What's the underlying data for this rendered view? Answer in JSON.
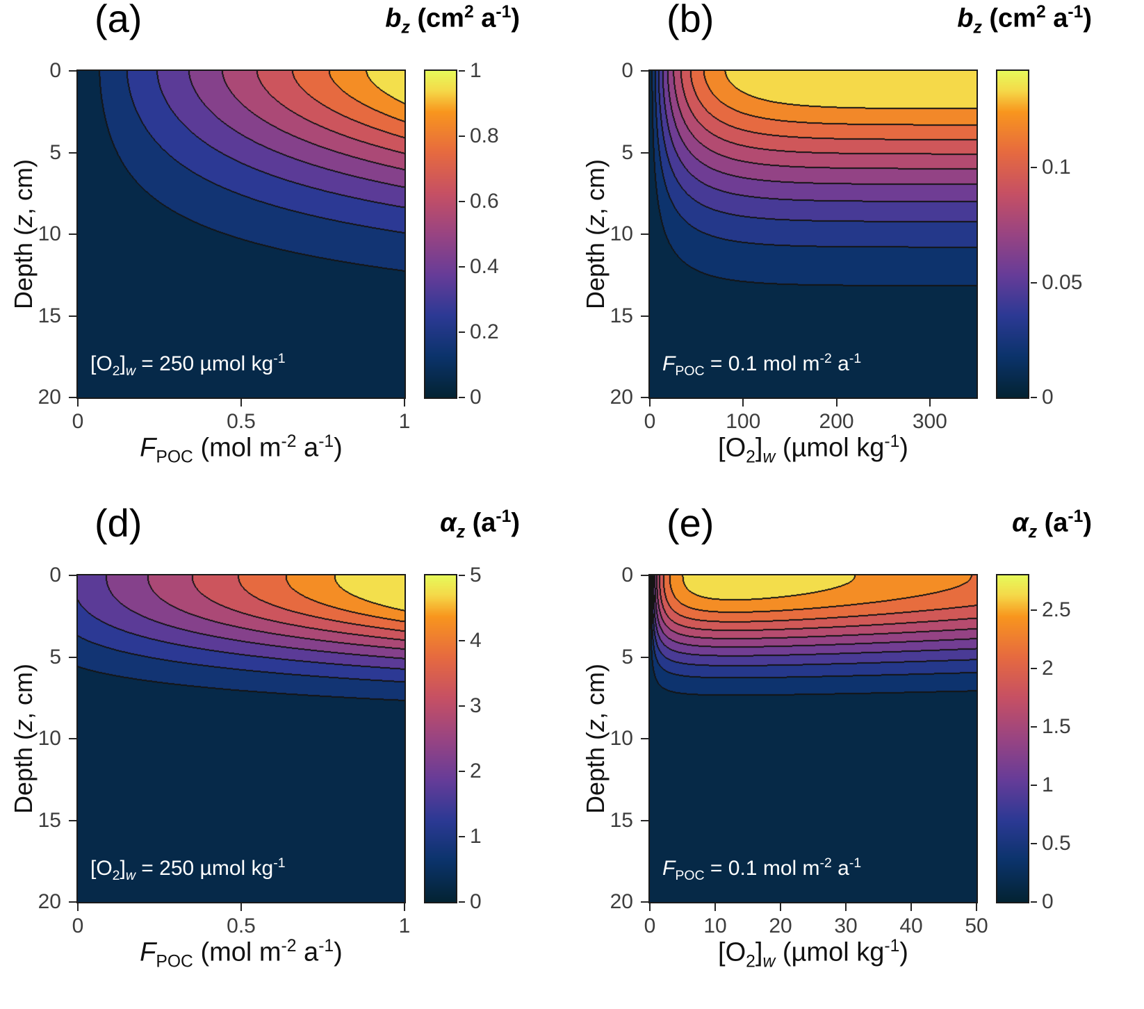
{
  "figure": {
    "background": "#ffffff",
    "tick_color": "#262626",
    "tick_label_color": "#3d3d3d",
    "contour_line_color": "#141414",
    "annotation_color": "#ffffff",
    "colormap_name": "thermal",
    "colormap_stops": [
      {
        "t": 0.0,
        "hex": "#032333"
      },
      {
        "t": 0.125,
        "hex": "#0b336b"
      },
      {
        "t": 0.25,
        "hex": "#2c3994"
      },
      {
        "t": 0.375,
        "hex": "#673c98"
      },
      {
        "t": 0.5,
        "hex": "#994482"
      },
      {
        "t": 0.625,
        "hex": "#c65064"
      },
      {
        "t": 0.75,
        "hex": "#e66a40"
      },
      {
        "t": 0.875,
        "hex": "#f8961e"
      },
      {
        "t": 0.94,
        "hex": "#f5d949"
      },
      {
        "t": 1.0,
        "hex": "#e7fa5a"
      }
    ]
  },
  "chart_data": [
    {
      "id": "a",
      "type": "heatmap",
      "subtype": "filled_contour",
      "panel_label": "(a)",
      "colorbar_title": [
        {
          "t": "b",
          "i": true,
          "b": true
        },
        {
          "t": "z",
          "i": true,
          "b": true,
          "sub": true
        },
        {
          "t": " (cm",
          "b": true
        },
        {
          "t": "2",
          "b": true,
          "sup": true
        },
        {
          "t": " a",
          "b": true
        },
        {
          "t": "-1",
          "b": true,
          "sup": true
        },
        {
          "t": ")",
          "b": true
        }
      ],
      "xlabel": [
        {
          "t": "F",
          "i": true
        },
        {
          "t": "POC",
          "sub": true
        },
        {
          "t": " (mol m"
        },
        {
          "t": "-2",
          "sup": true
        },
        {
          "t": " a"
        },
        {
          "t": "-1",
          "sup": true
        },
        {
          "t": ")"
        }
      ],
      "ylabel": [
        {
          "t": "Depth ("
        },
        {
          "t": "z",
          "i": true
        },
        {
          "t": ", cm)"
        }
      ],
      "annotation": [
        {
          "t": "[O"
        },
        {
          "t": "2",
          "sub": true
        },
        {
          "t": "]"
        },
        {
          "t": "w",
          "sub": true,
          "i": true
        },
        {
          "t": " = 250 µmol kg"
        },
        {
          "t": "-1",
          "sup": true
        }
      ],
      "x_range": [
        0,
        1
      ],
      "x_ticks": [
        {
          "v": 0,
          "label": "0"
        },
        {
          "v": 0.5,
          "label": "0.5"
        },
        {
          "v": 1,
          "label": "1"
        }
      ],
      "z_range": [
        0,
        20
      ],
      "z_ticks": [
        {
          "v": 0,
          "label": "0"
        },
        {
          "v": 5,
          "label": "5"
        },
        {
          "v": 10,
          "label": "10"
        },
        {
          "v": 15,
          "label": "15"
        },
        {
          "v": 20,
          "label": "20"
        }
      ],
      "v_range": [
        0,
        1
      ],
      "levels": [
        0.1,
        0.2,
        0.3,
        0.4,
        0.5,
        0.6,
        0.7,
        0.8,
        0.9
      ],
      "colorbar_ticks": [
        {
          "v": 0,
          "label": "0"
        },
        {
          "v": 0.2,
          "label": "0.2"
        },
        {
          "v": 0.4,
          "label": "0.4"
        },
        {
          "v": 0.6,
          "label": "0.6"
        },
        {
          "v": 0.8,
          "label": "0.8"
        },
        {
          "v": 1,
          "label": "1"
        }
      ],
      "model": {
        "a0": 0,
        "a1": 1,
        "p": 0.85,
        "L": 7.5,
        "q": 1.7
      }
    },
    {
      "id": "b",
      "type": "heatmap",
      "subtype": "filled_contour",
      "panel_label": "(b)",
      "colorbar_title": [
        {
          "t": "b",
          "i": true,
          "b": true
        },
        {
          "t": "z",
          "i": true,
          "b": true,
          "sub": true
        },
        {
          "t": " (cm",
          "b": true
        },
        {
          "t": "2",
          "b": true,
          "sup": true
        },
        {
          "t": " a",
          "b": true
        },
        {
          "t": "-1",
          "b": true,
          "sup": true
        },
        {
          "t": ")",
          "b": true
        }
      ],
      "xlabel": [
        {
          "t": "[O"
        },
        {
          "t": "2",
          "sub": true
        },
        {
          "t": "]"
        },
        {
          "t": "w",
          "sub": true,
          "i": true
        },
        {
          "t": " (µmol kg"
        },
        {
          "t": "-1",
          "sup": true
        },
        {
          "t": ")"
        }
      ],
      "ylabel": [
        {
          "t": "Depth ("
        },
        {
          "t": "z",
          "i": true
        },
        {
          "t": ", cm)"
        }
      ],
      "annotation": [
        {
          "t": "F",
          "i": true
        },
        {
          "t": "POC",
          "sub": true
        },
        {
          "t": " = 0.1 mol m"
        },
        {
          "t": "-2",
          "sup": true
        },
        {
          "t": " a"
        },
        {
          "t": "-1",
          "sup": true
        }
      ],
      "x_range": [
        0,
        350
      ],
      "x_ticks": [
        {
          "v": 0,
          "label": "0"
        },
        {
          "v": 100,
          "label": "100"
        },
        {
          "v": 200,
          "label": "200"
        },
        {
          "v": 300,
          "label": "300"
        }
      ],
      "z_range": [
        0,
        20
      ],
      "z_ticks": [
        {
          "v": 0,
          "label": "0"
        },
        {
          "v": 5,
          "label": "5"
        },
        {
          "v": 10,
          "label": "10"
        },
        {
          "v": 15,
          "label": "15"
        },
        {
          "v": 20,
          "label": "20"
        }
      ],
      "v_range": [
        0,
        0.142
      ],
      "levels": [
        0.0125,
        0.025,
        0.0375,
        0.05,
        0.0625,
        0.075,
        0.0875,
        0.1,
        0.1125,
        0.125
      ],
      "colorbar_ticks": [
        {
          "v": 0,
          "label": "0"
        },
        {
          "v": 0.05,
          "label": "0.05"
        },
        {
          "v": 0.1,
          "label": "0.1"
        }
      ],
      "model": {
        "a0": 0.142,
        "a1": 0,
        "p": 1,
        "rise_k": 35,
        "rise_m": 0.9,
        "L": 7.8,
        "q": 1.7
      }
    },
    {
      "id": "d",
      "type": "heatmap",
      "subtype": "filled_contour",
      "panel_label": "(d)",
      "colorbar_title": [
        {
          "t": "α",
          "i": true,
          "b": true
        },
        {
          "t": "z",
          "i": true,
          "b": true,
          "sub": true
        },
        {
          "t": " (a",
          "b": true
        },
        {
          "t": "-1",
          "b": true,
          "sup": true
        },
        {
          "t": ")",
          "b": true
        }
      ],
      "xlabel": [
        {
          "t": "F",
          "i": true
        },
        {
          "t": "POC",
          "sub": true
        },
        {
          "t": " (mol m"
        },
        {
          "t": "-2",
          "sup": true
        },
        {
          "t": " a"
        },
        {
          "t": "-1",
          "sup": true
        },
        {
          "t": ")"
        }
      ],
      "ylabel": [
        {
          "t": "Depth ("
        },
        {
          "t": "z",
          "i": true
        },
        {
          "t": ", cm)"
        }
      ],
      "annotation": [
        {
          "t": "[O"
        },
        {
          "t": "2",
          "sub": true
        },
        {
          "t": "]"
        },
        {
          "t": "w",
          "sub": true,
          "i": true
        },
        {
          "t": " = 250 µmol kg"
        },
        {
          "t": "-1",
          "sup": true
        }
      ],
      "x_range": [
        0,
        1
      ],
      "x_ticks": [
        {
          "v": 0,
          "label": "0"
        },
        {
          "v": 0.5,
          "label": "0.5"
        },
        {
          "v": 1,
          "label": "1"
        }
      ],
      "z_range": [
        0,
        20
      ],
      "z_ticks": [
        {
          "v": 0,
          "label": "0"
        },
        {
          "v": 5,
          "label": "5"
        },
        {
          "v": 10,
          "label": "10"
        },
        {
          "v": 15,
          "label": "15"
        },
        {
          "v": 20,
          "label": "20"
        }
      ],
      "v_range": [
        0,
        5
      ],
      "levels": [
        0.5,
        1,
        1.5,
        2,
        2.5,
        3,
        3.5,
        4,
        4.5
      ],
      "colorbar_ticks": [
        {
          "v": 0,
          "label": "0"
        },
        {
          "v": 1,
          "label": "1"
        },
        {
          "v": 2,
          "label": "2"
        },
        {
          "v": 3,
          "label": "3"
        },
        {
          "v": 4,
          "label": "4"
        },
        {
          "v": 5,
          "label": "5"
        }
      ],
      "model": {
        "a0": 1.6,
        "a1": 3.6,
        "p": 0.9,
        "L": 5.2,
        "q": 2.2
      }
    },
    {
      "id": "e",
      "type": "heatmap",
      "subtype": "filled_contour",
      "panel_label": "(e)",
      "colorbar_title": [
        {
          "t": "α",
          "i": true,
          "b": true
        },
        {
          "t": "z",
          "i": true,
          "b": true,
          "sub": true
        },
        {
          "t": " (a",
          "b": true
        },
        {
          "t": "-1",
          "b": true,
          "sup": true
        },
        {
          "t": ")",
          "b": true
        }
      ],
      "xlabel": [
        {
          "t": "[O"
        },
        {
          "t": "2",
          "sub": true
        },
        {
          "t": "]"
        },
        {
          "t": "w",
          "sub": true,
          "i": true
        },
        {
          "t": " (µmol kg"
        },
        {
          "t": "-1",
          "sup": true
        },
        {
          "t": ")"
        }
      ],
      "ylabel": [
        {
          "t": "Depth ("
        },
        {
          "t": "z",
          "i": true
        },
        {
          "t": ", cm)"
        }
      ],
      "annotation": [
        {
          "t": "F",
          "i": true
        },
        {
          "t": "POC",
          "sub": true
        },
        {
          "t": " = 0.1 mol m"
        },
        {
          "t": "-2",
          "sup": true
        },
        {
          "t": " a"
        },
        {
          "t": "-1",
          "sup": true
        }
      ],
      "x_range": [
        0,
        50
      ],
      "x_ticks": [
        {
          "v": 0,
          "label": "0"
        },
        {
          "v": 10,
          "label": "10"
        },
        {
          "v": 20,
          "label": "20"
        },
        {
          "v": 30,
          "label": "30"
        },
        {
          "v": 40,
          "label": "40"
        },
        {
          "v": 50,
          "label": "50"
        }
      ],
      "z_range": [
        0,
        20
      ],
      "z_ticks": [
        {
          "v": 0,
          "label": "0"
        },
        {
          "v": 5,
          "label": "5"
        },
        {
          "v": 10,
          "label": "10"
        },
        {
          "v": 15,
          "label": "15"
        },
        {
          "v": 20,
          "label": "20"
        }
      ],
      "v_range": [
        0,
        2.8
      ],
      "levels": [
        0.25,
        0.5,
        0.75,
        1,
        1.25,
        1.5,
        1.75,
        2,
        2.25,
        2.5
      ],
      "colorbar_ticks": [
        {
          "v": 0,
          "label": "0"
        },
        {
          "v": 0.5,
          "label": "0.5"
        },
        {
          "v": 1,
          "label": "1"
        },
        {
          "v": 1.5,
          "label": "1.5"
        },
        {
          "v": 2,
          "label": "2"
        },
        {
          "v": 2.5,
          "label": "2.5"
        }
      ],
      "model": {
        "a0": 3.2,
        "a1": 0,
        "p": 1,
        "sat_k": 1.2,
        "xdecay": 150,
        "L": 4.95,
        "q": 2.2
      }
    }
  ]
}
